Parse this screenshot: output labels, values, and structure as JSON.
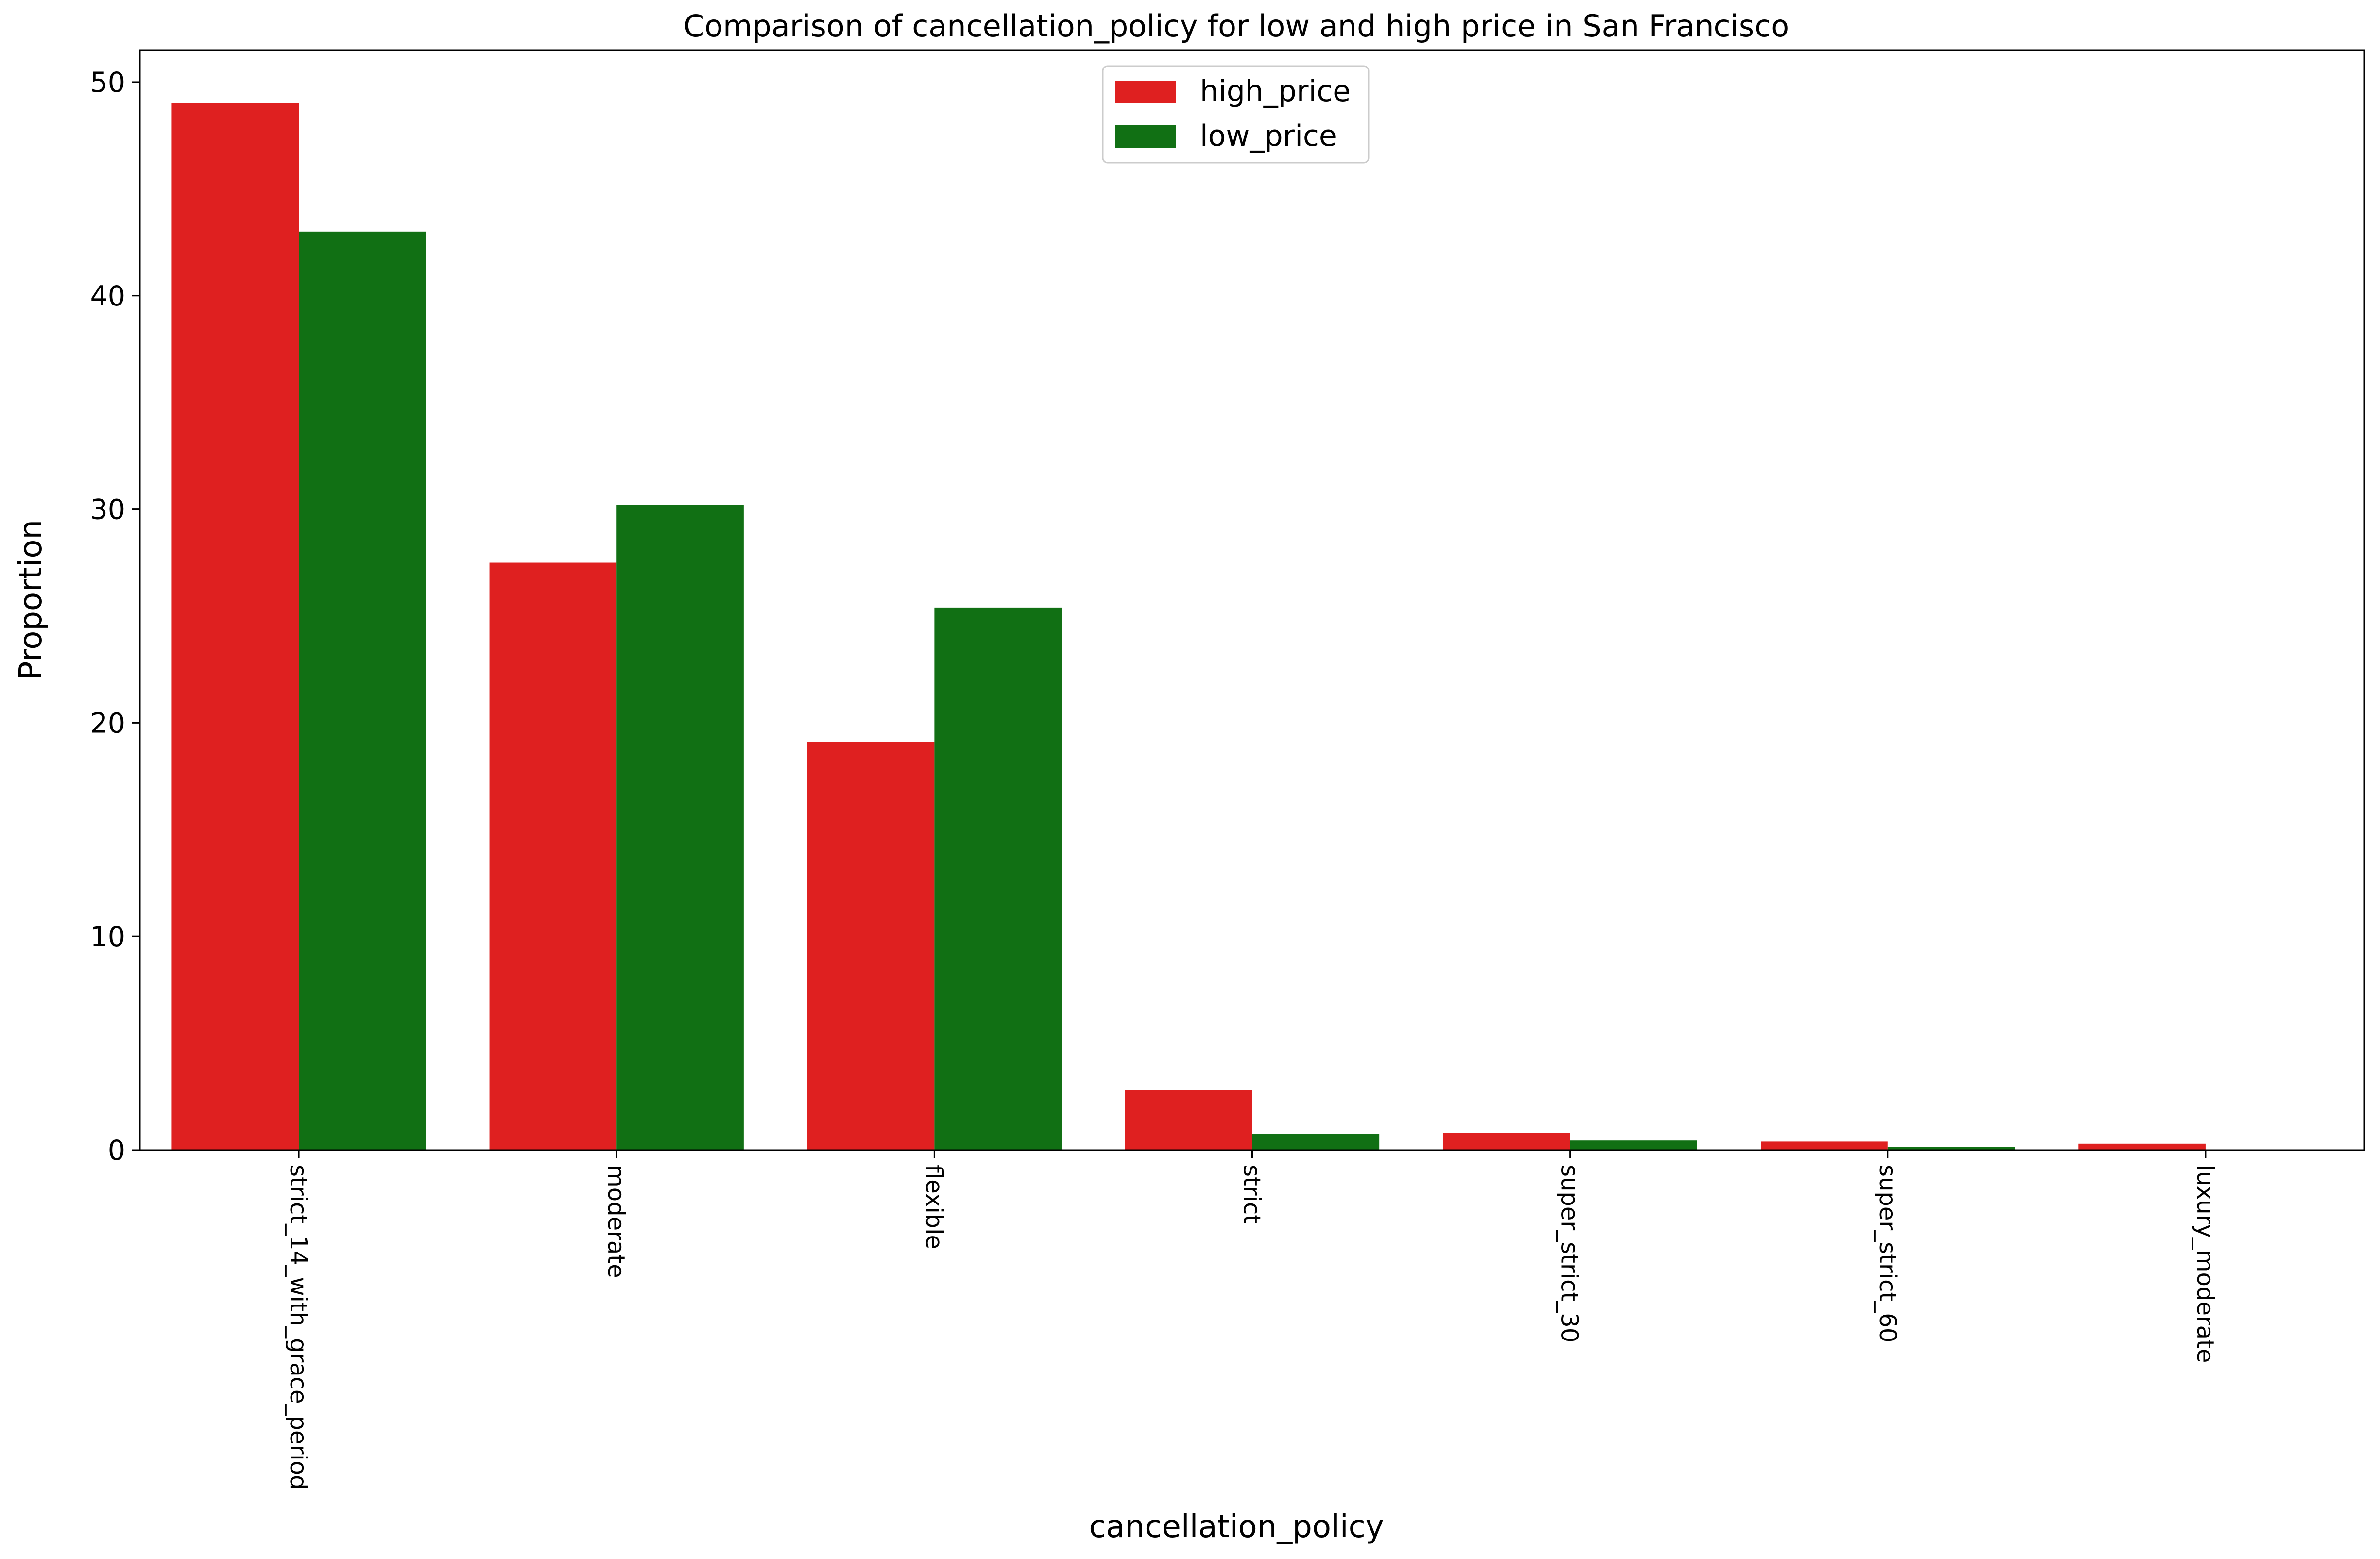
{
  "chart_data": {
    "type": "bar",
    "title": "Comparison of cancellation_policy for low and high price in San Francisco",
    "xlabel": "cancellation_policy",
    "ylabel": "Proportion",
    "ylim": [
      0,
      51.5
    ],
    "yticks": [
      0,
      10,
      20,
      30,
      40,
      50
    ],
    "grid": false,
    "legend_position": "top-center",
    "categories": [
      "strict_14_with_grace_period",
      "moderate",
      "flexible",
      "strict",
      "super_strict_30",
      "super_strict_60",
      "luxury_moderate"
    ],
    "series": [
      {
        "name": "high_price",
        "color": "#df2020",
        "values": [
          49.0,
          27.5,
          19.1,
          2.8,
          0.8,
          0.4,
          0.3
        ]
      },
      {
        "name": "low_price",
        "color": "#117014",
        "values": [
          43.0,
          30.2,
          25.4,
          0.75,
          0.45,
          0.15,
          0.0
        ]
      }
    ]
  }
}
